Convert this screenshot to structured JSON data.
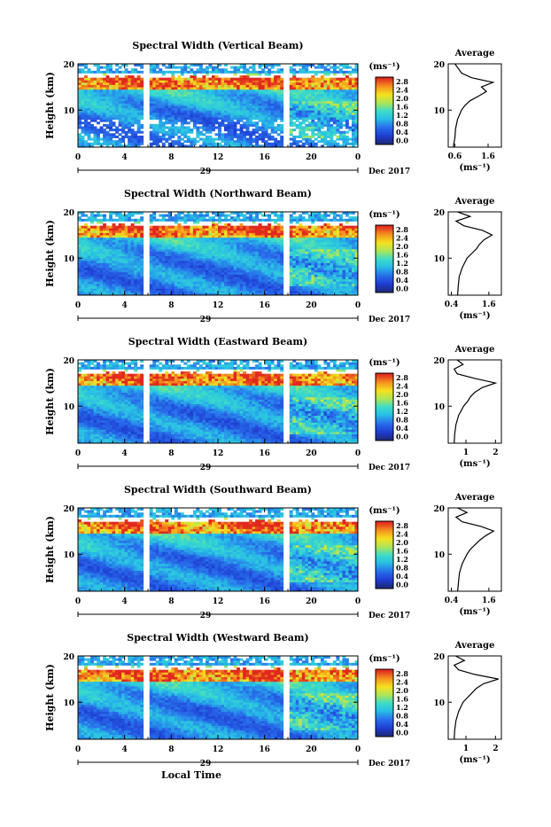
{
  "figure": {
    "xlabel": "Local Time",
    "ylabel": "Height (km)",
    "date_label": "Dec 2017",
    "day_label": "29",
    "unit_label": "(ms⁻¹)",
    "avg_title": "Average",
    "avg_xlabel": "(ms⁻¹)",
    "colorbar_ticks": [
      "0.0",
      "0.4",
      "0.8",
      "1.2",
      "1.6",
      "2.0",
      "2.4",
      "2.8"
    ],
    "colors": {
      "low": "#1f3fd6",
      "mid": "#2ad0d8",
      "high": "#f0e020",
      "max": "#e03020",
      "gap": "#ffffff"
    }
  },
  "chart_data": [
    {
      "type": "heatmap",
      "title": "Spectral Width (Vertical Beam)",
      "x_ticks": [
        "0",
        "4",
        "8",
        "12",
        "16",
        "20",
        "0"
      ],
      "xlim": [
        0,
        24
      ],
      "y_ticks": [
        "10",
        "20"
      ],
      "ylim": [
        2,
        20
      ],
      "colorbar_range": [
        0.0,
        3.0
      ],
      "data_gaps_hours": [
        [
          5.6,
          6.2
        ],
        [
          17.6,
          18.0
        ]
      ],
      "average_profile": {
        "x_ticks": [
          "0.6",
          "1.6"
        ],
        "xlim": [
          0.4,
          2.0
        ],
        "y_ticks": [
          "10",
          "20"
        ],
        "heights": [
          2,
          4,
          6,
          8,
          10,
          11,
          12,
          13,
          14,
          15,
          16,
          17,
          18,
          19,
          20
        ],
        "values": [
          0.55,
          0.6,
          0.62,
          0.68,
          0.8,
          0.9,
          1.05,
          1.3,
          1.55,
          1.4,
          1.75,
          1.1,
          0.8,
          0.7,
          0.6
        ]
      }
    },
    {
      "type": "heatmap",
      "title": "Spectral Width (Northward Beam)",
      "x_ticks": [
        "0",
        "4",
        "8",
        "12",
        "16",
        "20",
        "0"
      ],
      "xlim": [
        0,
        24
      ],
      "y_ticks": [
        "10",
        "20"
      ],
      "ylim": [
        2,
        20
      ],
      "colorbar_range": [
        0.0,
        3.0
      ],
      "data_gaps_hours": [
        [
          5.6,
          6.2
        ],
        [
          17.6,
          18.0
        ]
      ],
      "average_profile": {
        "x_ticks": [
          "0.4",
          "1.6"
        ],
        "xlim": [
          0.3,
          2.0
        ],
        "y_ticks": [
          "10",
          "20"
        ],
        "heights": [
          2,
          4,
          6,
          8,
          10,
          11,
          12,
          13,
          14,
          15,
          16,
          17,
          18,
          19,
          20
        ],
        "values": [
          0.6,
          0.62,
          0.65,
          0.75,
          0.9,
          1.05,
          1.2,
          1.3,
          1.45,
          1.7,
          1.4,
          0.8,
          0.55,
          1.0,
          0.6
        ]
      }
    },
    {
      "type": "heatmap",
      "title": "Spectral Width (Eastward Beam)",
      "x_ticks": [
        "0",
        "4",
        "8",
        "12",
        "16",
        "20",
        "0"
      ],
      "xlim": [
        0,
        24
      ],
      "y_ticks": [
        "10",
        "20"
      ],
      "ylim": [
        2,
        20
      ],
      "colorbar_range": [
        0.0,
        3.0
      ],
      "data_gaps_hours": [
        [
          5.6,
          6.2
        ],
        [
          17.6,
          18.0
        ]
      ],
      "average_profile": {
        "x_ticks": [
          "1",
          "2"
        ],
        "xlim": [
          0.4,
          2.2
        ],
        "y_ticks": [
          "10",
          "20"
        ],
        "heights": [
          2,
          4,
          6,
          8,
          10,
          11,
          12,
          13,
          14,
          15,
          16,
          17,
          18,
          19,
          20
        ],
        "values": [
          0.6,
          0.62,
          0.66,
          0.75,
          0.92,
          1.05,
          1.15,
          1.3,
          1.55,
          2.0,
          1.3,
          0.7,
          0.6,
          0.9,
          0.7
        ]
      }
    },
    {
      "type": "heatmap",
      "title": "Spectral Width (Southward Beam)",
      "x_ticks": [
        "0",
        "4",
        "8",
        "12",
        "16",
        "20",
        "0"
      ],
      "xlim": [
        0,
        24
      ],
      "y_ticks": [
        "10",
        "20"
      ],
      "ylim": [
        2,
        20
      ],
      "colorbar_range": [
        0.0,
        3.0
      ],
      "data_gaps_hours": [
        [
          5.6,
          6.2
        ],
        [
          17.6,
          18.0
        ]
      ],
      "average_profile": {
        "x_ticks": [
          "0.4",
          "1.6"
        ],
        "xlim": [
          0.3,
          2.0
        ],
        "y_ticks": [
          "10",
          "20"
        ],
        "heights": [
          2,
          4,
          6,
          8,
          10,
          11,
          12,
          13,
          14,
          15,
          16,
          17,
          18,
          19,
          20
        ],
        "values": [
          0.6,
          0.63,
          0.66,
          0.75,
          0.9,
          1.0,
          1.15,
          1.3,
          1.5,
          1.75,
          1.35,
          0.75,
          0.55,
          0.9,
          0.6
        ]
      }
    },
    {
      "type": "heatmap",
      "title": "Spectral Width (Westward Beam)",
      "x_ticks": [
        "0",
        "4",
        "8",
        "12",
        "16",
        "20",
        "0"
      ],
      "xlim": [
        0,
        24
      ],
      "y_ticks": [
        "10",
        "20"
      ],
      "ylim": [
        2,
        20
      ],
      "colorbar_range": [
        0.0,
        3.0
      ],
      "data_gaps_hours": [
        [
          5.6,
          6.2
        ],
        [
          17.6,
          18.0
        ]
      ],
      "average_profile": {
        "x_ticks": [
          "1",
          "2"
        ],
        "xlim": [
          0.4,
          2.2
        ],
        "y_ticks": [
          "10",
          "20"
        ],
        "heights": [
          2,
          4,
          6,
          8,
          10,
          11,
          12,
          13,
          14,
          15,
          16,
          17,
          18,
          19,
          20
        ],
        "values": [
          0.6,
          0.62,
          0.66,
          0.75,
          0.9,
          1.05,
          1.2,
          1.35,
          1.6,
          2.1,
          1.3,
          0.75,
          0.6,
          0.95,
          0.65
        ]
      }
    }
  ]
}
